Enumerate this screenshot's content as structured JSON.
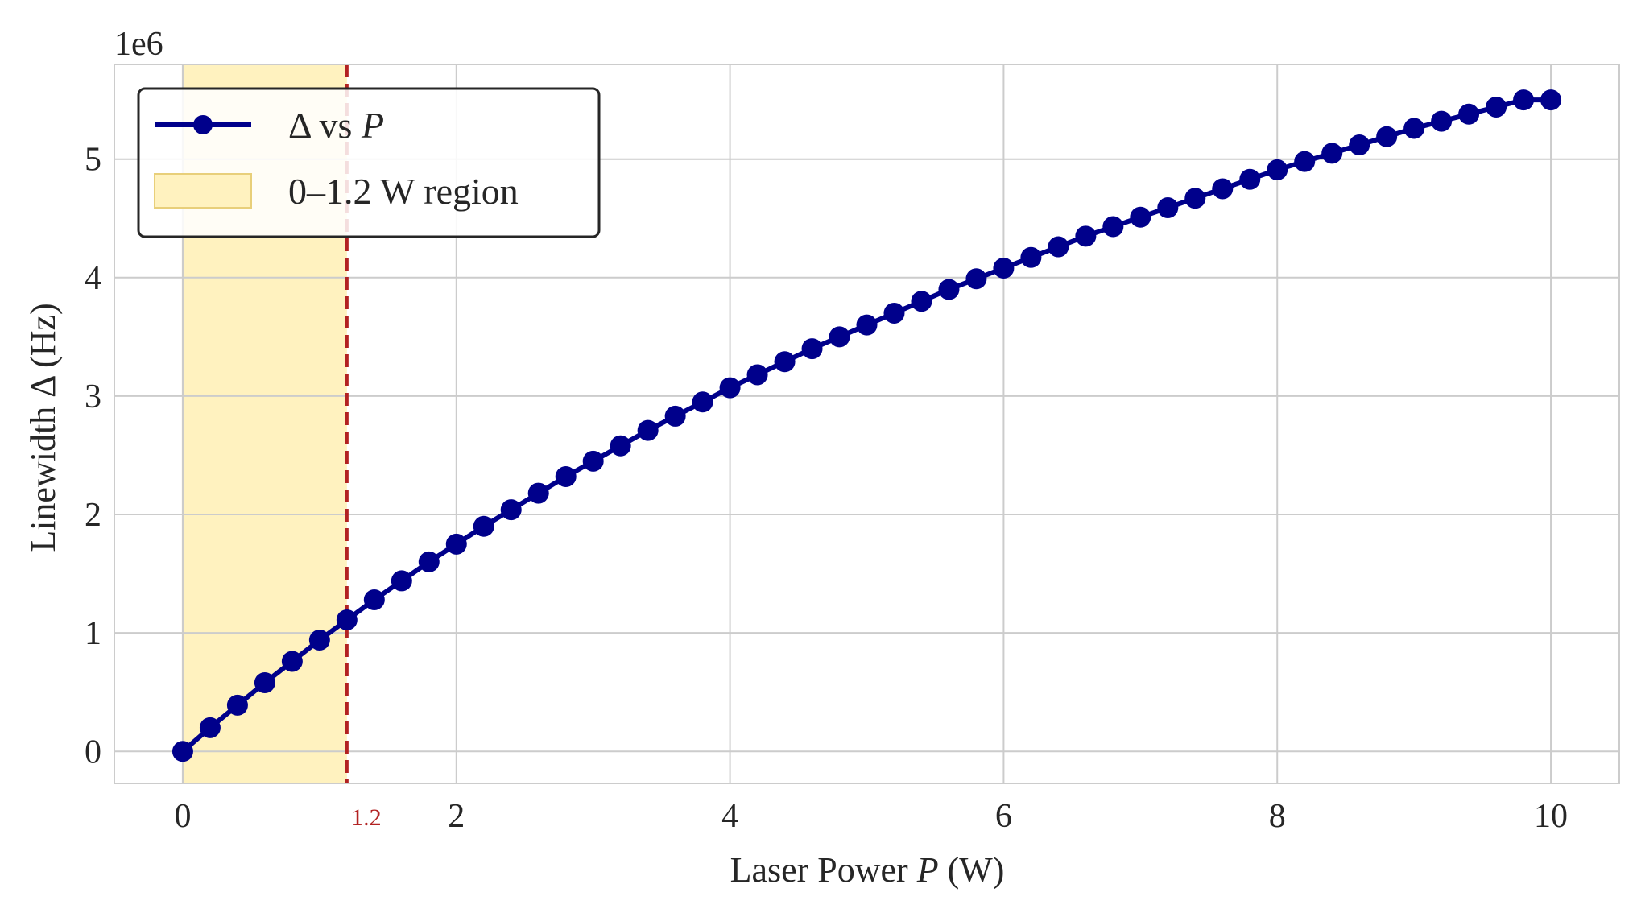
{
  "colors": {
    "line": "#00008b",
    "region_fill": "#fff2bf",
    "region_edge": "#e8cf7a",
    "threshold_line": "#b22222",
    "grid": "#cccccc",
    "spine": "#cccccc",
    "text": "#262626"
  },
  "chart_data": {
    "type": "line",
    "xlabel_prefix": "Laser Power ",
    "xlabel_var": "P",
    "xlabel_suffix": " (W)",
    "ylabel": "Linewidth Δ (Hz)",
    "y_offset_text": "1e6",
    "xlim": [
      -0.5,
      10.5
    ],
    "ylim": [
      -0.27,
      5.8
    ],
    "xticks": [
      0,
      2,
      4,
      6,
      8,
      10
    ],
    "xtick_labels": [
      "0",
      "2",
      "4",
      "6",
      "8",
      "10"
    ],
    "yticks": [
      0,
      1,
      2,
      3,
      4,
      5
    ],
    "ytick_labels": [
      "0",
      "1",
      "2",
      "3",
      "4",
      "5"
    ],
    "grid": true,
    "legend_position": "top-left",
    "series": [
      {
        "name_prefix": "Δ vs ",
        "name_var": "P",
        "marker": "circle",
        "x": [
          0.0,
          0.2,
          0.4,
          0.6,
          0.8,
          1.0,
          1.2,
          1.4,
          1.6,
          1.8,
          2.0,
          2.2,
          2.4,
          2.6,
          2.8,
          3.0,
          3.2,
          3.4,
          3.6,
          3.8,
          4.0,
          4.2,
          4.4,
          4.6,
          4.8,
          5.0,
          5.2,
          5.4,
          5.6,
          5.8,
          6.0,
          6.2,
          6.4,
          6.6,
          6.8,
          7.0,
          7.2,
          7.4,
          7.6,
          7.8,
          8.0,
          8.2,
          8.4,
          8.6,
          8.8,
          9.0,
          9.2,
          9.4,
          9.6,
          9.8,
          10.0
        ],
        "y": [
          0.0,
          0.2,
          0.39,
          0.58,
          0.76,
          0.94,
          1.11,
          1.28,
          1.44,
          1.6,
          1.75,
          1.9,
          2.04,
          2.18,
          2.32,
          2.45,
          2.58,
          2.71,
          2.83,
          2.95,
          3.07,
          3.18,
          3.29,
          3.4,
          3.5,
          3.6,
          3.7,
          3.8,
          3.9,
          3.99,
          4.08,
          4.17,
          4.26,
          4.35,
          4.43,
          4.51,
          4.59,
          4.67,
          4.75,
          4.83,
          4.91,
          4.98,
          5.05,
          5.12,
          5.19,
          5.26,
          5.32,
          5.38,
          5.44,
          5.5,
          5.5
        ]
      }
    ],
    "region": {
      "label": "0–1.2 W region",
      "x_start": 0,
      "x_end": 1.2
    },
    "threshold": {
      "x": 1.2,
      "label": "1.2"
    }
  }
}
